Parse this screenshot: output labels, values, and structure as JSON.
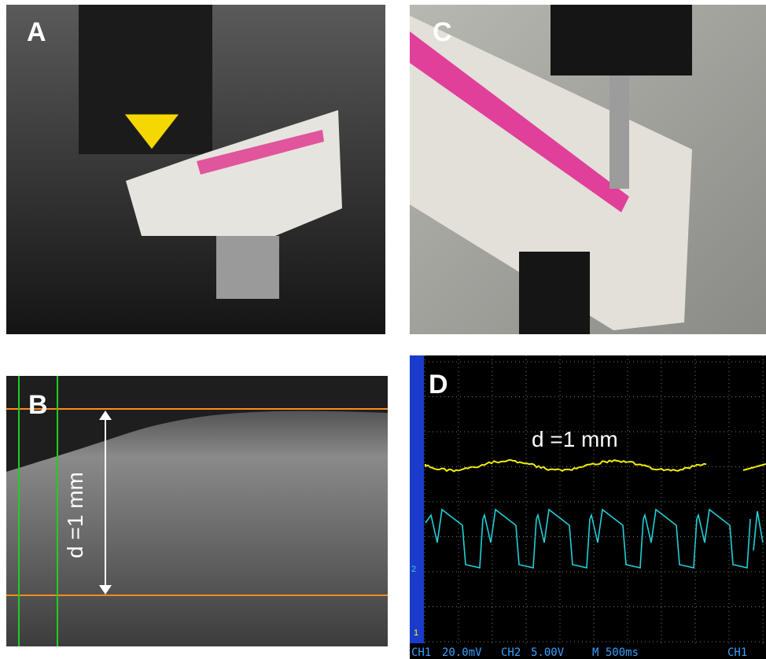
{
  "panels": [
    {
      "label": "A"
    },
    {
      "label": "C"
    },
    {
      "label": "B",
      "annotation": "d =1 mm"
    },
    {
      "label": "D",
      "annotation": "d =1 mm",
      "status_bar": [
        "CH1",
        "20.0mV",
        "CH2",
        "5.00V",
        "M 500ms",
        "CH1"
      ],
      "markers": [
        "2",
        "1"
      ]
    }
  ]
}
